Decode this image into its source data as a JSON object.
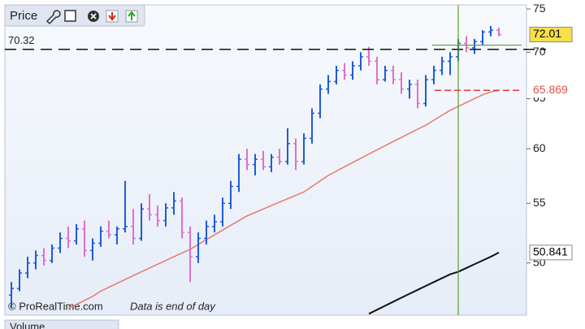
{
  "chart_data": {
    "type": "ohlc",
    "title": "Price",
    "source": "© ProRealTime.com",
    "note": "Data is end of day",
    "lower_panel_title": "Volume",
    "log_scale": true,
    "ylim": [
      46,
      75.5
    ],
    "yticks": [
      50,
      55,
      60,
      65,
      70,
      75
    ],
    "hline": 70.32,
    "crosshair": {
      "index": 55,
      "value": 70.8
    },
    "up_color": "#1f5bd8",
    "down_color": "#e070c8",
    "ohlc": [
      [
        47.5,
        48.5,
        46.5,
        48
      ],
      [
        48,
        49.5,
        47.8,
        49.2
      ],
      [
        49.2,
        50.5,
        48.8,
        50
      ],
      [
        50,
        51,
        49.5,
        50.6
      ],
      [
        50.6,
        51.2,
        49.8,
        50.2
      ],
      [
        50.2,
        51.5,
        50,
        51.2
      ],
      [
        51.2,
        52.5,
        50.8,
        52
      ],
      [
        52,
        53,
        51.2,
        51.8
      ],
      [
        51.8,
        53.2,
        51.5,
        52.8
      ],
      [
        52.8,
        53.5,
        50.5,
        51
      ],
      [
        51,
        52,
        50.2,
        51.6
      ],
      [
        51.6,
        53,
        51.3,
        52.6
      ],
      [
        52.6,
        53.5,
        52,
        52.3
      ],
      [
        52.3,
        53,
        51.5,
        52.8
      ],
      [
        52.8,
        57,
        52.5,
        53
      ],
      [
        53,
        54.5,
        51.5,
        52
      ],
      [
        52,
        55,
        51.8,
        54.5
      ],
      [
        54.5,
        55.8,
        53.5,
        54
      ],
      [
        54,
        54.8,
        53,
        53.5
      ],
      [
        53.5,
        55,
        53,
        54.6
      ],
      [
        54.6,
        56,
        54,
        55.2
      ],
      [
        55.2,
        55.5,
        52,
        52.5
      ],
      [
        52.5,
        53,
        48.5,
        50.5
      ],
      [
        50.5,
        52.5,
        50,
        52
      ],
      [
        52,
        53.5,
        51.5,
        53
      ],
      [
        53,
        54,
        52.5,
        53.4
      ],
      [
        53.4,
        55.5,
        53,
        55
      ],
      [
        55,
        57,
        54.5,
        56.5
      ],
      [
        56.5,
        59.5,
        56,
        59
      ],
      [
        59,
        60,
        58,
        58.5
      ],
      [
        58.5,
        59.5,
        57.5,
        59
      ],
      [
        59,
        59.8,
        58,
        58.3
      ],
      [
        58.3,
        59.5,
        57.8,
        59.2
      ],
      [
        59.2,
        60,
        58.5,
        58.8
      ],
      [
        58.8,
        62,
        58.5,
        60.5
      ],
      [
        60.5,
        61,
        58,
        58.8
      ],
      [
        58.8,
        61.5,
        58.5,
        61
      ],
      [
        61,
        64,
        60.5,
        63.5
      ],
      [
        63.5,
        66.5,
        63,
        66
      ],
      [
        66,
        67.5,
        65.5,
        66.8
      ],
      [
        66.8,
        68.5,
        66.5,
        68
      ],
      [
        68,
        68.8,
        67,
        67.5
      ],
      [
        67.5,
        69,
        67,
        68.5
      ],
      [
        68.5,
        70,
        68,
        69.5
      ],
      [
        69.5,
        70.6,
        68.5,
        69
      ],
      [
        69,
        69.5,
        66.5,
        67
      ],
      [
        67,
        68.5,
        66.8,
        68
      ],
      [
        68,
        68.5,
        66.5,
        67
      ],
      [
        67,
        67.8,
        65.5,
        66
      ],
      [
        66,
        67,
        65,
        66.5
      ],
      [
        66.5,
        67,
        64,
        64.5
      ],
      [
        64.5,
        67.5,
        64.2,
        67
      ],
      [
        67,
        68.5,
        66.5,
        68
      ],
      [
        68,
        69.5,
        67.5,
        69
      ],
      [
        69,
        70,
        67.5,
        69.5
      ],
      [
        69.5,
        71.5,
        69,
        71
      ],
      [
        71,
        71.8,
        70,
        70.5
      ],
      [
        70.5,
        71.5,
        69.8,
        71.2
      ],
      [
        71.2,
        72.5,
        70.8,
        72.3
      ],
      [
        72.3,
        73,
        71.8,
        72.5
      ],
      [
        72.5,
        72.8,
        71.8,
        72.01
      ]
    ],
    "lines": [
      {
        "color": "#e8796c",
        "values": [
          null,
          null,
          null,
          null,
          null,
          null,
          null,
          46.5,
          46.8,
          47.1,
          47.4,
          47.8,
          48.1,
          48.4,
          48.7,
          49,
          49.3,
          49.6,
          49.9,
          50.2,
          50.5,
          50.8,
          51.1,
          51.5,
          51.9,
          52.3,
          52.7,
          53.1,
          53.5,
          53.9,
          54.2,
          54.5,
          54.8,
          55.1,
          55.4,
          55.7,
          56,
          56.5,
          57,
          57.5,
          57.9,
          58.3,
          58.7,
          59.1,
          59.5,
          59.9,
          60.3,
          60.7,
          61.1,
          61.5,
          61.9,
          62.3,
          62.8,
          63.3,
          63.8,
          64.2,
          64.6,
          65,
          65.4,
          65.7,
          65.869
        ]
      },
      {
        "color": "#111111",
        "values": [
          null,
          null,
          null,
          null,
          null,
          null,
          null,
          null,
          null,
          null,
          null,
          null,
          null,
          null,
          null,
          null,
          null,
          null,
          null,
          null,
          null,
          null,
          null,
          null,
          null,
          null,
          null,
          null,
          null,
          null,
          null,
          null,
          null,
          null,
          null,
          null,
          null,
          null,
          null,
          null,
          null,
          null,
          null,
          null,
          46.1,
          46.4,
          46.7,
          47,
          47.3,
          47.6,
          47.9,
          48.2,
          48.5,
          48.8,
          49.1,
          49.3,
          49.6,
          49.9,
          50.2,
          50.5,
          50.841
        ]
      }
    ]
  }
}
